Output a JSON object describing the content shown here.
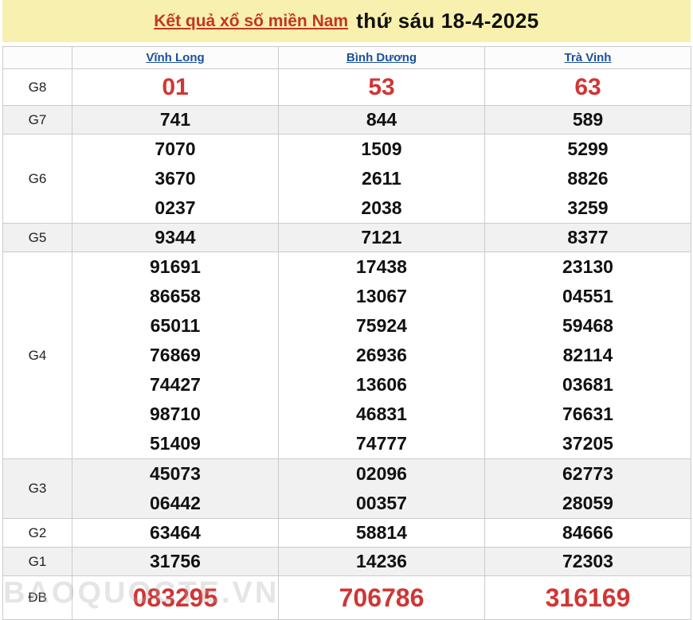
{
  "header": {
    "title_link": "Kết quả xổ số miền Nam",
    "title_date": "thứ sáu 18-4-2025"
  },
  "colors": {
    "banner_bg": "#F8F0AE",
    "title_link_red": "#C43425",
    "column_header_blue": "#1B5199",
    "highlight_red": "#D13535",
    "alt_row_gray": "#F1F1F1",
    "border_gray": "#CBCBCB"
  },
  "watermark": {
    "text": "BAOQUOCTE.VN"
  },
  "table": {
    "columns": [
      "Vĩnh Long",
      "Bình Dương",
      "Trà Vinh"
    ],
    "rows": [
      {
        "key": "g8",
        "label": "G8",
        "highlight": true,
        "values": [
          [
            "01"
          ],
          [
            "53"
          ],
          [
            "63"
          ]
        ]
      },
      {
        "key": "g7",
        "label": "G7",
        "highlight": false,
        "values": [
          [
            "741"
          ],
          [
            "844"
          ],
          [
            "589"
          ]
        ]
      },
      {
        "key": "g6",
        "label": "G6",
        "highlight": false,
        "values": [
          [
            "7070",
            "3670",
            "0237"
          ],
          [
            "1509",
            "2611",
            "2038"
          ],
          [
            "5299",
            "8826",
            "3259"
          ]
        ]
      },
      {
        "key": "g5",
        "label": "G5",
        "highlight": false,
        "values": [
          [
            "9344"
          ],
          [
            "7121"
          ],
          [
            "8377"
          ]
        ]
      },
      {
        "key": "g4",
        "label": "G4",
        "highlight": false,
        "values": [
          [
            "91691",
            "86658",
            "65011",
            "76869",
            "74427",
            "98710",
            "51409"
          ],
          [
            "17438",
            "13067",
            "75924",
            "26936",
            "13606",
            "46831",
            "74777"
          ],
          [
            "23130",
            "04551",
            "59468",
            "82114",
            "03681",
            "76631",
            "37205"
          ]
        ]
      },
      {
        "key": "g3",
        "label": "G3",
        "highlight": false,
        "values": [
          [
            "45073",
            "06442"
          ],
          [
            "02096",
            "00357"
          ],
          [
            "62773",
            "28059"
          ]
        ]
      },
      {
        "key": "g2",
        "label": "G2",
        "highlight": false,
        "values": [
          [
            "63464"
          ],
          [
            "58814"
          ],
          [
            "84666"
          ]
        ]
      },
      {
        "key": "g1",
        "label": "G1",
        "highlight": false,
        "values": [
          [
            "31756"
          ],
          [
            "14236"
          ],
          [
            "72303"
          ]
        ]
      },
      {
        "key": "db",
        "label": "ĐB",
        "highlight": true,
        "values": [
          [
            "083295"
          ],
          [
            "706786"
          ],
          [
            "316169"
          ]
        ]
      }
    ]
  }
}
